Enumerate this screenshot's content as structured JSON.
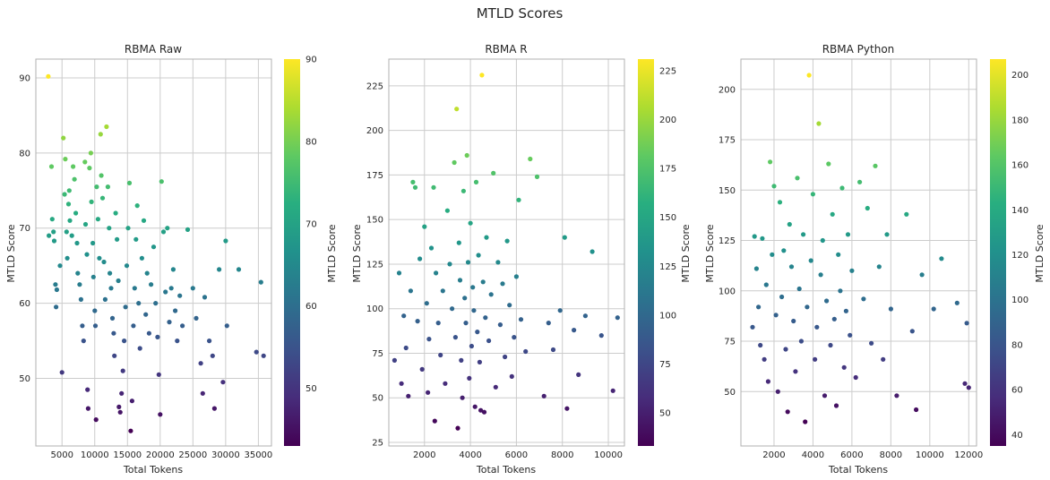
{
  "figure": {
    "title": "MTLD Scores"
  },
  "colors": {
    "background": "#ffffff",
    "grid": "#cccccc",
    "axes_edge": "#b0b0b0",
    "colormap": "viridis"
  },
  "chart_data": [
    {
      "type": "scatter",
      "title": "RBMA Raw",
      "xlabel": "Total Tokens",
      "ylabel": "MTLD Score",
      "xlim": [
        1000,
        37000
      ],
      "ylim": [
        41,
        92.5
      ],
      "xticks": [
        5000,
        10000,
        15000,
        20000,
        25000,
        30000,
        35000
      ],
      "yticks": [
        50,
        60,
        70,
        80,
        90
      ],
      "grid": true,
      "colorbar": {
        "label": "MTLD Score",
        "min": 43,
        "max": 90,
        "ticks": [
          50,
          60,
          70,
          80,
          90
        ]
      },
      "points": [
        [
          2900,
          90.2
        ],
        [
          3000,
          69
        ],
        [
          3400,
          78.2
        ],
        [
          3500,
          71.2
        ],
        [
          3700,
          69.5
        ],
        [
          3800,
          68.3
        ],
        [
          4000,
          62.5
        ],
        [
          4200,
          61.8
        ],
        [
          4100,
          59.5
        ],
        [
          4700,
          65
        ],
        [
          5000,
          50.8
        ],
        [
          5200,
          82
        ],
        [
          5400,
          74.5
        ],
        [
          5500,
          79.2
        ],
        [
          5700,
          69.5
        ],
        [
          5800,
          66
        ],
        [
          6000,
          73.2
        ],
        [
          6100,
          75
        ],
        [
          6200,
          71
        ],
        [
          6500,
          69
        ],
        [
          6700,
          78.2
        ],
        [
          6900,
          76.5
        ],
        [
          7100,
          72
        ],
        [
          7300,
          68
        ],
        [
          7400,
          64
        ],
        [
          7700,
          62.5
        ],
        [
          7900,
          60.5
        ],
        [
          8100,
          57
        ],
        [
          8300,
          55
        ],
        [
          8500,
          78.8
        ],
        [
          8600,
          70.5
        ],
        [
          8800,
          66.5
        ],
        [
          8900,
          48.5
        ],
        [
          9000,
          46
        ],
        [
          9200,
          78
        ],
        [
          9400,
          80
        ],
        [
          9500,
          73.5
        ],
        [
          9700,
          68
        ],
        [
          9800,
          63.5
        ],
        [
          10000,
          59
        ],
        [
          10100,
          57
        ],
        [
          10200,
          44.5
        ],
        [
          10300,
          75.5
        ],
        [
          10500,
          71.2
        ],
        [
          10700,
          66
        ],
        [
          10900,
          82.5
        ],
        [
          11000,
          77
        ],
        [
          11200,
          74
        ],
        [
          11400,
          65.5
        ],
        [
          11600,
          60.5
        ],
        [
          11800,
          83.5
        ],
        [
          12000,
          75.5
        ],
        [
          12200,
          70
        ],
        [
          12300,
          64
        ],
        [
          12500,
          62
        ],
        [
          12700,
          58
        ],
        [
          12900,
          56
        ],
        [
          13000,
          53
        ],
        [
          13200,
          72
        ],
        [
          13400,
          68.5
        ],
        [
          13600,
          63
        ],
        [
          13700,
          46.2
        ],
        [
          13900,
          45.5
        ],
        [
          14100,
          48
        ],
        [
          14300,
          51
        ],
        [
          14500,
          55
        ],
        [
          14700,
          59.5
        ],
        [
          14900,
          65
        ],
        [
          15100,
          70
        ],
        [
          15300,
          76
        ],
        [
          15500,
          43
        ],
        [
          15700,
          47
        ],
        [
          15900,
          57
        ],
        [
          16100,
          62
        ],
        [
          16300,
          68.5
        ],
        [
          16500,
          73
        ],
        [
          16700,
          60
        ],
        [
          16900,
          54
        ],
        [
          17200,
          66
        ],
        [
          17500,
          71
        ],
        [
          17800,
          58.5
        ],
        [
          18000,
          64
        ],
        [
          18300,
          56
        ],
        [
          18600,
          62.5
        ],
        [
          19000,
          67.5
        ],
        [
          19300,
          60
        ],
        [
          19600,
          55.5
        ],
        [
          19800,
          50.5
        ],
        [
          20000,
          45.2
        ],
        [
          20200,
          76.2
        ],
        [
          20500,
          69.5
        ],
        [
          20800,
          61.5
        ],
        [
          21100,
          70
        ],
        [
          21400,
          57.5
        ],
        [
          21700,
          62
        ],
        [
          22000,
          64.5
        ],
        [
          22300,
          59
        ],
        [
          22600,
          55
        ],
        [
          23000,
          61
        ],
        [
          23400,
          57
        ],
        [
          24200,
          69.8
        ],
        [
          25000,
          62
        ],
        [
          25500,
          58
        ],
        [
          26200,
          52
        ],
        [
          26500,
          48
        ],
        [
          26800,
          60.8
        ],
        [
          27500,
          55
        ],
        [
          28000,
          53
        ],
        [
          28300,
          46
        ],
        [
          29000,
          64.5
        ],
        [
          29600,
          49.5
        ],
        [
          30000,
          68.3
        ],
        [
          30200,
          57
        ],
        [
          32000,
          64.5
        ],
        [
          34700,
          53.5
        ],
        [
          35400,
          62.8
        ],
        [
          35800,
          53
        ]
      ]
    },
    {
      "type": "scatter",
      "title": "RBMA R",
      "xlabel": "Total Tokens",
      "ylabel": "MTLD Score",
      "xlim": [
        450,
        10700
      ],
      "ylim": [
        23,
        240
      ],
      "xticks": [
        2000,
        4000,
        6000,
        8000,
        10000
      ],
      "yticks": [
        25,
        50,
        75,
        100,
        125,
        150,
        175,
        200,
        225
      ],
      "grid": true,
      "colorbar": {
        "label": "MTLD Score",
        "min": 33,
        "max": 231,
        "ticks": [
          50,
          75,
          100,
          125,
          150,
          175,
          200,
          225
        ]
      },
      "points": [
        [
          700,
          71
        ],
        [
          900,
          120
        ],
        [
          1000,
          58
        ],
        [
          1100,
          96
        ],
        [
          1200,
          78
        ],
        [
          1300,
          51
        ],
        [
          1400,
          110
        ],
        [
          1500,
          171
        ],
        [
          1600,
          168
        ],
        [
          1700,
          93
        ],
        [
          1800,
          128
        ],
        [
          1900,
          66
        ],
        [
          2000,
          146
        ],
        [
          2100,
          103
        ],
        [
          2150,
          53
        ],
        [
          2200,
          83
        ],
        [
          2300,
          134
        ],
        [
          2400,
          168
        ],
        [
          2450,
          37
        ],
        [
          2500,
          120
        ],
        [
          2600,
          92
        ],
        [
          2700,
          74
        ],
        [
          2800,
          110
        ],
        [
          2900,
          58
        ],
        [
          3000,
          155
        ],
        [
          3100,
          125
        ],
        [
          3200,
          100
        ],
        [
          3300,
          182
        ],
        [
          3350,
          84
        ],
        [
          3400,
          212
        ],
        [
          3450,
          33
        ],
        [
          3500,
          137
        ],
        [
          3550,
          116
        ],
        [
          3600,
          71
        ],
        [
          3650,
          50
        ],
        [
          3700,
          166
        ],
        [
          3750,
          106
        ],
        [
          3800,
          92
        ],
        [
          3850,
          186
        ],
        [
          3900,
          126
        ],
        [
          3950,
          61
        ],
        [
          4000,
          148
        ],
        [
          4050,
          79
        ],
        [
          4100,
          112
        ],
        [
          4150,
          99
        ],
        [
          4200,
          45
        ],
        [
          4250,
          171
        ],
        [
          4300,
          87
        ],
        [
          4350,
          130
        ],
        [
          4400,
          70
        ],
        [
          4450,
          43
        ],
        [
          4500,
          231
        ],
        [
          4550,
          115
        ],
        [
          4600,
          42
        ],
        [
          4650,
          95
        ],
        [
          4700,
          140
        ],
        [
          4800,
          82
        ],
        [
          4900,
          108
        ],
        [
          5000,
          176
        ],
        [
          5100,
          56
        ],
        [
          5200,
          126
        ],
        [
          5300,
          91
        ],
        [
          5400,
          114
        ],
        [
          5500,
          73
        ],
        [
          5600,
          138
        ],
        [
          5700,
          102
        ],
        [
          5800,
          62
        ],
        [
          5900,
          84
        ],
        [
          6000,
          118
        ],
        [
          6100,
          161
        ],
        [
          6200,
          94
        ],
        [
          6400,
          76
        ],
        [
          6600,
          184
        ],
        [
          6900,
          174
        ],
        [
          7200,
          51
        ],
        [
          7400,
          92
        ],
        [
          7600,
          77
        ],
        [
          7900,
          99
        ],
        [
          8100,
          140
        ],
        [
          8200,
          44
        ],
        [
          8500,
          88
        ],
        [
          8700,
          63
        ],
        [
          9000,
          96
        ],
        [
          9300,
          132
        ],
        [
          9700,
          85
        ],
        [
          10200,
          54
        ],
        [
          10400,
          95
        ]
      ]
    },
    {
      "type": "scatter",
      "title": "RBMA Python",
      "xlabel": "Total Tokens",
      "ylabel": "MTLD Score",
      "xlim": [
        300,
        12400
      ],
      "ylim": [
        23,
        215
      ],
      "xticks": [
        2000,
        4000,
        6000,
        8000,
        10000,
        12000
      ],
      "yticks": [
        50,
        75,
        100,
        125,
        150,
        175,
        200
      ],
      "grid": true,
      "colorbar": {
        "label": "MTLD Score",
        "min": 35,
        "max": 207,
        "ticks": [
          40,
          60,
          80,
          100,
          120,
          140,
          160,
          180,
          200
        ]
      },
      "points": [
        [
          900,
          82
        ],
        [
          1000,
          127
        ],
        [
          1100,
          111
        ],
        [
          1200,
          92
        ],
        [
          1300,
          73
        ],
        [
          1400,
          126
        ],
        [
          1500,
          66
        ],
        [
          1600,
          103
        ],
        [
          1700,
          55
        ],
        [
          1800,
          164
        ],
        [
          1900,
          118
        ],
        [
          2000,
          152
        ],
        [
          2100,
          88
        ],
        [
          2200,
          50
        ],
        [
          2300,
          144
        ],
        [
          2400,
          97
        ],
        [
          2500,
          120
        ],
        [
          2600,
          71
        ],
        [
          2700,
          40
        ],
        [
          2800,
          133
        ],
        [
          2900,
          112
        ],
        [
          3000,
          85
        ],
        [
          3100,
          60
        ],
        [
          3200,
          156
        ],
        [
          3300,
          101
        ],
        [
          3400,
          75
        ],
        [
          3500,
          128
        ],
        [
          3600,
          35
        ],
        [
          3700,
          92
        ],
        [
          3800,
          207
        ],
        [
          3900,
          115
        ],
        [
          4000,
          148
        ],
        [
          4100,
          66
        ],
        [
          4200,
          82
        ],
        [
          4300,
          183
        ],
        [
          4400,
          108
        ],
        [
          4500,
          125
        ],
        [
          4600,
          48
        ],
        [
          4700,
          95
        ],
        [
          4800,
          163
        ],
        [
          4900,
          73
        ],
        [
          5000,
          138
        ],
        [
          5100,
          86
        ],
        [
          5200,
          43
        ],
        [
          5300,
          118
        ],
        [
          5400,
          100
        ],
        [
          5500,
          151
        ],
        [
          5600,
          62
        ],
        [
          5700,
          90
        ],
        [
          5800,
          128
        ],
        [
          5900,
          78
        ],
        [
          6000,
          110
        ],
        [
          6200,
          57
        ],
        [
          6400,
          154
        ],
        [
          6600,
          96
        ],
        [
          6800,
          141
        ],
        [
          7000,
          74
        ],
        [
          7200,
          162
        ],
        [
          7400,
          112
        ],
        [
          7600,
          66
        ],
        [
          7800,
          128
        ],
        [
          8000,
          91
        ],
        [
          8300,
          48
        ],
        [
          8800,
          138
        ],
        [
          9100,
          80
        ],
        [
          9300,
          41
        ],
        [
          9600,
          108
        ],
        [
          10200,
          91
        ],
        [
          10600,
          116
        ],
        [
          11400,
          94
        ],
        [
          11800,
          54
        ],
        [
          11900,
          84
        ],
        [
          12000,
          52
        ]
      ]
    }
  ]
}
